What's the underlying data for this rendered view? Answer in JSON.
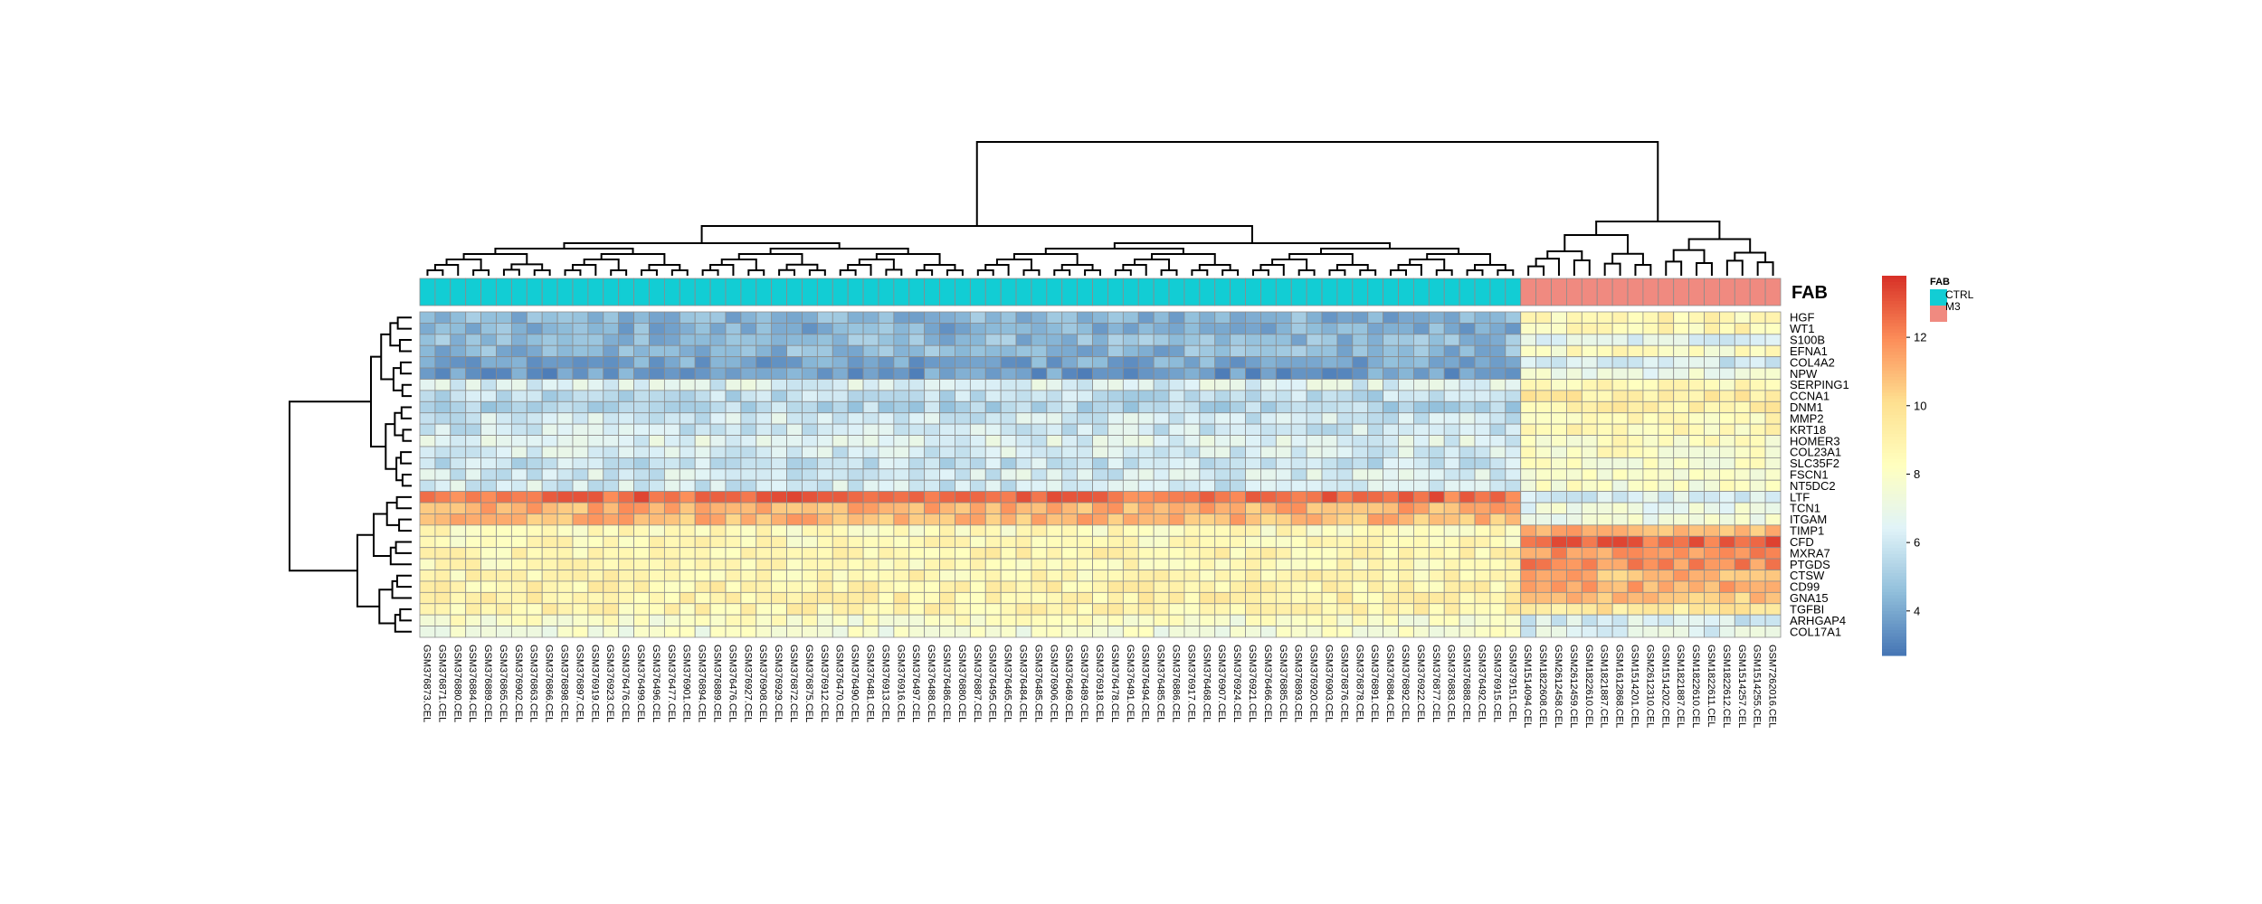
{
  "chart_data": {
    "type": "heatmap",
    "annotation_title": "FAB",
    "legend": {
      "title": "FAB",
      "entries": [
        {
          "label": "CTRL",
          "color": "#12cdd4"
        },
        {
          "label": "M3",
          "color": "#f08a80"
        }
      ]
    },
    "colorbar": {
      "ticks": [
        4,
        6,
        8,
        10,
        12
      ],
      "range": [
        2.7,
        13.8
      ],
      "colors": [
        "#4575b4",
        "#91bfdb",
        "#e0f3f8",
        "#ffffbf",
        "#fee090",
        "#fc8d59",
        "#d73027"
      ]
    },
    "rows": [
      "HGF",
      "WT1",
      "S100B",
      "EFNA1",
      "COL4A2",
      "NPW",
      "SERPING1",
      "CCNA1",
      "DNM1",
      "MMP2",
      "KRT18",
      "HOMER3",
      "COL23A1",
      "SLC35F2",
      "FSCN1",
      "NT5DC2",
      "LTF",
      "TCN1",
      "ITGAM",
      "TIMP1",
      "CFD",
      "MXRA7",
      "PTGDS",
      "CTSW",
      "CD99",
      "GNA15",
      "TGFBI",
      "ARHGAP4",
      "COL17A1"
    ],
    "row_group_means": {
      "CTRL": [
        4.3,
        4.2,
        4.5,
        4.4,
        4.0,
        3.7,
        6.4,
        5.6,
        5.4,
        6.1,
        6.0,
        6.5,
        6.2,
        5.8,
        6.2,
        6.1,
        12.6,
        11.2,
        11.0,
        8.4,
        8.5,
        8.8,
        8.6,
        8.7,
        8.9,
        9.0,
        8.8,
        7.9,
        7.6
      ],
      "M3": [
        8.7,
        8.6,
        6.5,
        8.2,
        6.0,
        7.2,
        8.4,
        9.4,
        9.2,
        8.6,
        8.6,
        8.2,
        8.1,
        8.0,
        8.0,
        7.8,
        6.2,
        7.0,
        7.2,
        11.2,
        12.7,
        11.8,
        11.9,
        11.0,
        11.2,
        10.6,
        9.5,
        6.2,
        6.5
      ]
    },
    "columns": [
      "GSM376873.CEL",
      "GSM376871.CEL",
      "GSM376880.CEL",
      "GSM376884.CEL",
      "GSM376889.CEL",
      "GSM376865.CEL",
      "GSM376902.CEL",
      "GSM376863.CEL",
      "GSM376866.CEL",
      "GSM376898.CEL",
      "GSM376897.CEL",
      "GSM376919.CEL",
      "GSM376923.CEL",
      "GSM376476.CEL",
      "GSM376499.CEL",
      "GSM376496.CEL",
      "GSM376477.CEL",
      "GSM376901.CEL",
      "GSM376894.CEL",
      "GSM376889.CEL",
      "GSM376476.CEL",
      "GSM376927.CEL",
      "GSM376908.CEL",
      "GSM376929.CEL",
      "GSM376872.CEL",
      "GSM376875.CEL",
      "GSM376912.CEL",
      "GSM376470.CEL",
      "GSM376490.CEL",
      "GSM376481.CEL",
      "GSM376913.CEL",
      "GSM376916.CEL",
      "GSM376497.CEL",
      "GSM376488.CEL",
      "GSM376486.CEL",
      "GSM376880.CEL",
      "GSM376887.CEL",
      "GSM376495.CEL",
      "GSM376465.CEL",
      "GSM376484.CEL",
      "GSM376485.CEL",
      "GSM376906.CEL",
      "GSM376469.CEL",
      "GSM376489.CEL",
      "GSM376918.CEL",
      "GSM376478.CEL",
      "GSM376491.CEL",
      "GSM376494.CEL",
      "GSM376485.CEL",
      "GSM376886.CEL",
      "GSM376917.CEL",
      "GSM376468.CEL",
      "GSM376907.CEL",
      "GSM376924.CEL",
      "GSM376921.CEL",
      "GSM376466.CEL",
      "GSM376885.CEL",
      "GSM376893.CEL",
      "GSM376920.CEL",
      "GSM376903.CEL",
      "GSM376876.CEL",
      "GSM376878.CEL",
      "GSM376891.CEL",
      "GSM376884.CEL",
      "GSM376892.CEL",
      "GSM376922.CEL",
      "GSM376877.CEL",
      "GSM376883.CEL",
      "GSM376888.CEL",
      "GSM376492.CEL",
      "GSM376915.CEL",
      "GSM379151.CEL",
      "GSM1514094.CEL",
      "GSM1822608.CEL",
      "GSM2612458.CEL",
      "GSM2612459.CEL",
      "GSM1822610.CEL",
      "GSM1821887.CEL",
      "GSM1612868.CEL",
      "GSM1514201.CEL",
      "GSM2612310.CEL",
      "GSM1514202.CEL",
      "GSM1821887.CEL",
      "GSM1822610.CEL",
      "GSM1822611.CEL",
      "GSM1822612.CEL",
      "GSM1514257.CEL",
      "GSM1514255.CEL",
      "GSM7262016.CEL"
    ],
    "column_groups": [
      "CTRL",
      "CTRL",
      "CTRL",
      "CTRL",
      "CTRL",
      "CTRL",
      "CTRL",
      "CTRL",
      "CTRL",
      "CTRL",
      "CTRL",
      "CTRL",
      "CTRL",
      "CTRL",
      "CTRL",
      "CTRL",
      "CTRL",
      "CTRL",
      "CTRL",
      "CTRL",
      "CTRL",
      "CTRL",
      "CTRL",
      "CTRL",
      "CTRL",
      "CTRL",
      "CTRL",
      "CTRL",
      "CTRL",
      "CTRL",
      "CTRL",
      "CTRL",
      "CTRL",
      "CTRL",
      "CTRL",
      "CTRL",
      "CTRL",
      "CTRL",
      "CTRL",
      "CTRL",
      "CTRL",
      "CTRL",
      "CTRL",
      "CTRL",
      "CTRL",
      "CTRL",
      "CTRL",
      "CTRL",
      "CTRL",
      "CTRL",
      "CTRL",
      "CTRL",
      "CTRL",
      "CTRL",
      "CTRL",
      "CTRL",
      "CTRL",
      "CTRL",
      "CTRL",
      "CTRL",
      "CTRL",
      "CTRL",
      "CTRL",
      "CTRL",
      "CTRL",
      "CTRL",
      "CTRL",
      "CTRL",
      "CTRL",
      "CTRL",
      "CTRL",
      "CTRL",
      "M3",
      "M3",
      "M3",
      "M3",
      "M3",
      "M3",
      "M3",
      "M3",
      "M3",
      "M3",
      "M3",
      "M3",
      "M3",
      "M3",
      "M3",
      "M3",
      "M3"
    ],
    "grid": false
  }
}
